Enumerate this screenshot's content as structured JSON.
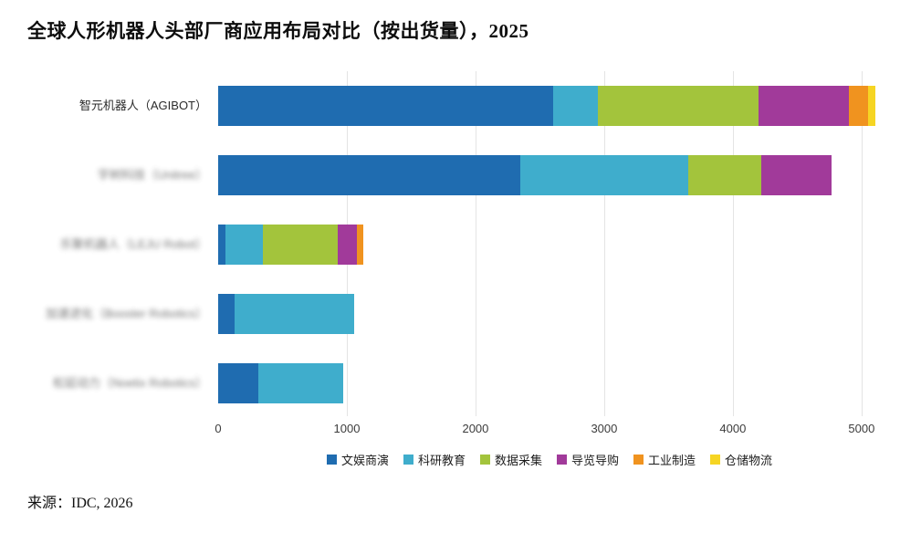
{
  "title": "全球人形机器人头部厂商应用布局对比（按出货量），2025",
  "source": "来源：IDC, 2026",
  "chart_data": {
    "type": "bar",
    "orientation": "horizontal",
    "stacked": true,
    "title": "全球人形机器人头部厂商应用布局对比（按出货量），2025",
    "xlabel": "",
    "ylabel": "",
    "xlim": [
      0,
      5150
    ],
    "x_ticks": [
      0,
      1000,
      2000,
      3000,
      4000,
      5000
    ],
    "grid": "vertical",
    "legend_position": "bottom",
    "categories": [
      "智元机器人（AGIBOT）",
      "宇树科技（Unitree）",
      "乐聚机器人（LEJU Robot）",
      "加速进化（Booster Robotics）",
      "松延动力（Noetix Robotics）"
    ],
    "categories_blurred": [
      false,
      true,
      true,
      true,
      true
    ],
    "series": [
      {
        "name": "文娱商演",
        "color": "#1f6cb0",
        "values": [
          2600,
          2350,
          60,
          130,
          310
        ]
      },
      {
        "name": "科研教育",
        "color": "#3fadcc",
        "values": [
          350,
          1300,
          290,
          930,
          660
        ]
      },
      {
        "name": "数据采集",
        "color": "#a3c43c",
        "values": [
          1250,
          570,
          580,
          0,
          0
        ]
      },
      {
        "name": "导览导购",
        "color": "#a13a9a",
        "values": [
          700,
          550,
          150,
          0,
          0
        ]
      },
      {
        "name": "工业制造",
        "color": "#f0931f",
        "values": [
          150,
          0,
          50,
          0,
          0
        ]
      },
      {
        "name": "仓储物流",
        "color": "#f6d523",
        "values": [
          60,
          0,
          0,
          0,
          0
        ]
      }
    ]
  }
}
